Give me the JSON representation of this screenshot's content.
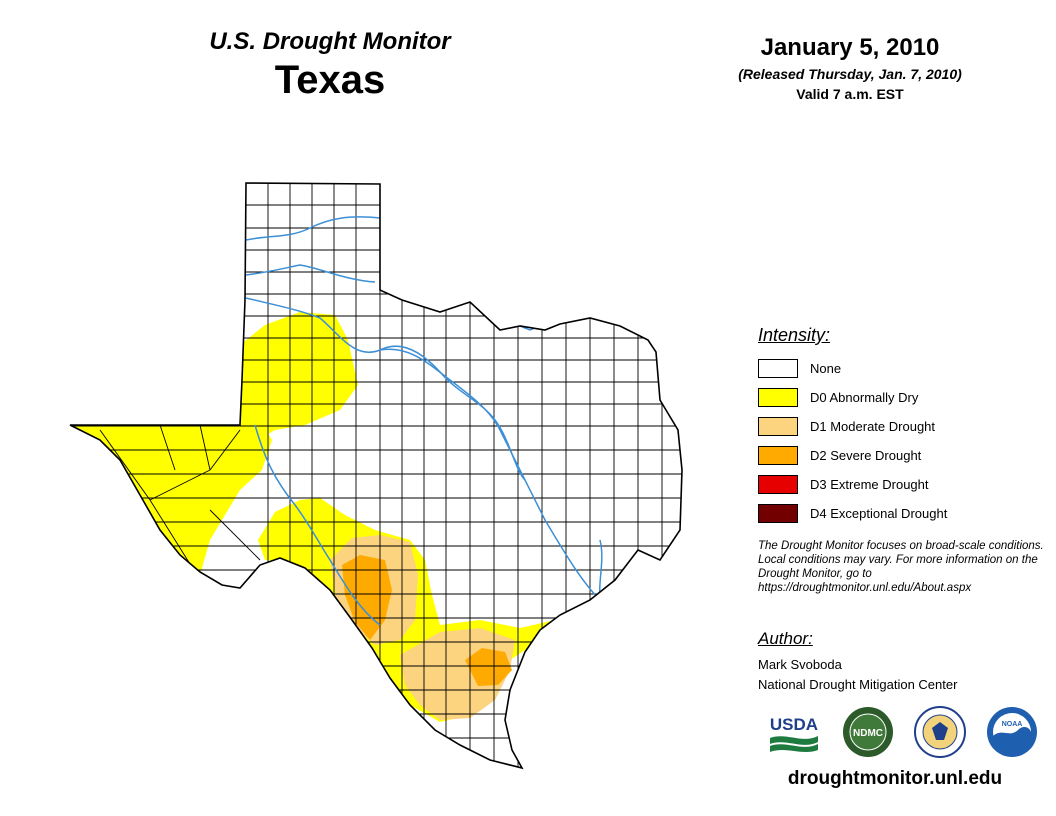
{
  "header": {
    "title": "U.S. Drought Monitor",
    "region": "Texas",
    "date": "January 5, 2010",
    "released": "(Released Thursday, Jan. 7, 2010)",
    "valid": "Valid 7 a.m. EST"
  },
  "legend": {
    "title": "Intensity:",
    "items": [
      {
        "label": "None",
        "color": "#ffffff"
      },
      {
        "label": "D0 Abnormally Dry",
        "color": "#ffff00"
      },
      {
        "label": "D1 Moderate Drought",
        "color": "#fcd37f"
      },
      {
        "label": "D2 Severe Drought",
        "color": "#ffaa00"
      },
      {
        "label": "D3 Extreme Drought",
        "color": "#e60000"
      },
      {
        "label": "D4 Exceptional Drought",
        "color": "#730000"
      }
    ]
  },
  "note": "The Drought Monitor focuses on broad-scale conditions. Local conditions may vary. For more information on the Drought Monitor, go to https://droughtmonitor.unl.edu/About.aspx",
  "author": {
    "title": "Author:",
    "name": "Mark Svoboda",
    "org": "National Drought Mitigation Center"
  },
  "logos": {
    "usda": "USDA",
    "ndmc": "NDMC",
    "noaa": "NOAA"
  },
  "site_url": "droughtmonitor.unl.edu",
  "colors": {
    "river": "#3d8fd6",
    "county_line": "#000000",
    "usda_green": "#1f7a3f",
    "usda_blue": "#1f3f8a",
    "ndmc_green": "#2d5a2a",
    "noaa_blue": "#1f5fb0"
  },
  "icons": [
    "usda-logo-icon",
    "ndmc-logo-icon",
    "commerce-seal-icon",
    "noaa-logo-icon"
  ]
}
